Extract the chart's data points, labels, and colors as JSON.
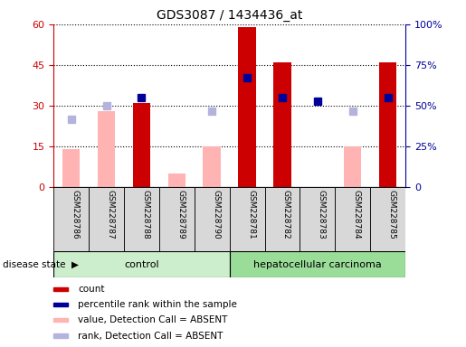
{
  "title": "GDS3087 / 1434436_at",
  "samples": [
    "GSM228786",
    "GSM228787",
    "GSM228788",
    "GSM228789",
    "GSM228790",
    "GSM228781",
    "GSM228782",
    "GSM228783",
    "GSM228784",
    "GSM228785"
  ],
  "groups": [
    "control",
    "control",
    "control",
    "control",
    "control",
    "hepatocellular carcinoma",
    "hepatocellular carcinoma",
    "hepatocellular carcinoma",
    "hepatocellular carcinoma",
    "hepatocellular carcinoma"
  ],
  "count": [
    null,
    null,
    31,
    null,
    null,
    59,
    46,
    null,
    null,
    46
  ],
  "percentile_rank": [
    null,
    null,
    55,
    null,
    null,
    67,
    55,
    53,
    null,
    55
  ],
  "value_absent": [
    14,
    28,
    null,
    5,
    15,
    null,
    null,
    null,
    15,
    null
  ],
  "rank_absent": [
    42,
    50,
    null,
    null,
    47,
    null,
    null,
    null,
    47,
    null
  ],
  "ylim_left": [
    0,
    60
  ],
  "ylim_right": [
    0,
    100
  ],
  "yticks_left": [
    0,
    15,
    30,
    45,
    60
  ],
  "yticks_right": [
    0,
    25,
    50,
    75,
    100
  ],
  "yticklabels_left": [
    "0",
    "15",
    "30",
    "45",
    "60"
  ],
  "yticklabels_right": [
    "0",
    "25%",
    "50%",
    "75%",
    "100%"
  ],
  "count_color": "#cc0000",
  "percentile_color": "#000099",
  "value_absent_color": "#ffb3b3",
  "rank_absent_color": "#b3b3dd",
  "control_bg": "#cceecc",
  "cancer_bg": "#99dd99",
  "bar_width": 0.5,
  "marker_size": 6,
  "control_count": 5,
  "cancer_count": 5
}
